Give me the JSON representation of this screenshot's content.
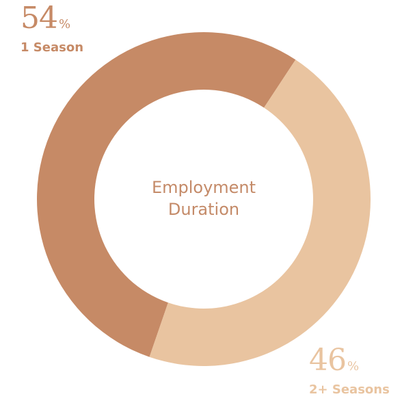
{
  "chart_data": {
    "type": "pie",
    "style": "donut",
    "title": "Employment Duration",
    "title_lines": [
      "Employment",
      "Duration"
    ],
    "categories": [
      "1 Season",
      "2+ Seasons"
    ],
    "values": [
      54,
      46
    ],
    "percent_sign": "%",
    "colors": [
      "#c68a66",
      "#e9c4a0"
    ],
    "label_colors": [
      "#c68a66",
      "#e9c4a0"
    ],
    "legend": "none"
  }
}
